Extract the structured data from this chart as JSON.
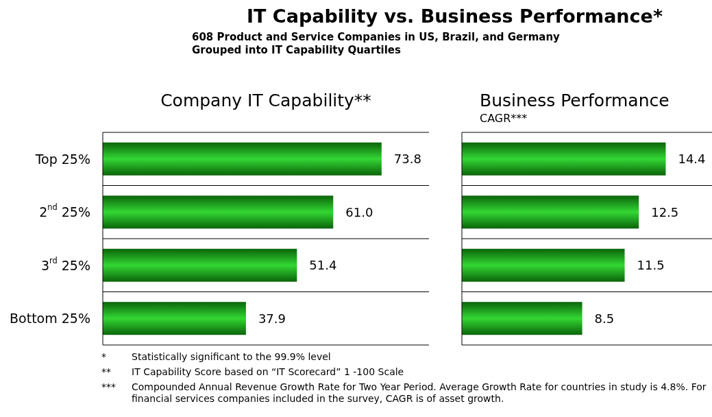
{
  "chart_data": [
    {
      "type": "bar",
      "orientation": "horizontal",
      "title": "IT Capability vs. Business Performance*",
      "subtitle": "608 Product and Service Companies in US, Brazil, and Germany\nGrouped into IT Capability Quartiles",
      "xlabel": "Company IT Capability**",
      "categories": [
        "Top 25%",
        "2$^{nd}$ 25%",
        "3$^{rd}$ 25%",
        "Bottom 25%"
      ],
      "values": [
        73.8,
        61.0,
        51.4,
        37.9
      ],
      "value_labels": [
        "73.8",
        "61.0",
        "51.4",
        "37.9"
      ],
      "color": "#33d633",
      "grid": "y",
      "tick_labels": "y",
      "annotations": [
        "* Statistically significant to the 99.9% level",
        "** IT Capability Score based on “IT Scorecard” 1 -100 Scale",
        "*** Compounded Annual Revenue Growth Rate for Two Year Period.  Average Growth Rate for countries in study is 4.8%.  For financial services companies included in the survey, CAGR is of asset growth."
      ]
    },
    {
      "type": "bar",
      "orientation": "horizontal",
      "title": "Business Performance",
      "subtitle": "CAGR***",
      "categories": [
        null,
        null,
        null,
        null
      ],
      "values": [
        14.4,
        12.5,
        11.5,
        8.5
      ],
      "value_labels": [
        "14.4",
        "12.5",
        "11.5",
        "8.5"
      ],
      "color": "#33d633",
      "grid": "y",
      "tick_labels": false
    }
  ]
}
